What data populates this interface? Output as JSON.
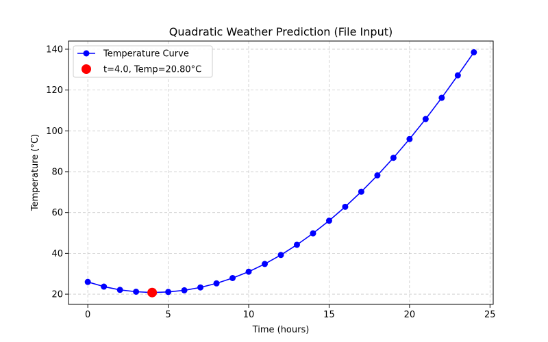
{
  "chart_data": {
    "type": "line",
    "title": "Quadratic Weather Prediction (File Input)",
    "xlabel": "Time (hours)",
    "ylabel": "Temperature (°C)",
    "xlim": [
      -1.2,
      25.2
    ],
    "ylim": [
      15,
      144
    ],
    "xticks": [
      0,
      5,
      10,
      15,
      20,
      25
    ],
    "yticks": [
      20,
      40,
      60,
      80,
      100,
      120,
      140
    ],
    "grid": true,
    "legend_position": "top-left",
    "series": [
      {
        "name": "Temperature Curve",
        "color": "#0000ff",
        "x": [
          0,
          1,
          2,
          3,
          4,
          5,
          6,
          7,
          8,
          9,
          10,
          11,
          12,
          13,
          14,
          15,
          16,
          17,
          18,
          19,
          20,
          21,
          22,
          23,
          24
        ],
        "y": [
          26.0,
          23.7,
          22.1,
          21.2,
          20.8,
          21.1,
          21.9,
          23.3,
          25.3,
          27.9,
          31.0,
          34.8,
          39.2,
          44.2,
          49.8,
          56.0,
          62.8,
          70.2,
          78.2,
          86.8,
          96.0,
          105.8,
          116.2,
          127.2,
          138.5
        ]
      }
    ],
    "highlight": {
      "label": "t=4.0, Temp=20.80°C",
      "x": 4.0,
      "y": 20.8,
      "color": "#ff0000"
    }
  }
}
